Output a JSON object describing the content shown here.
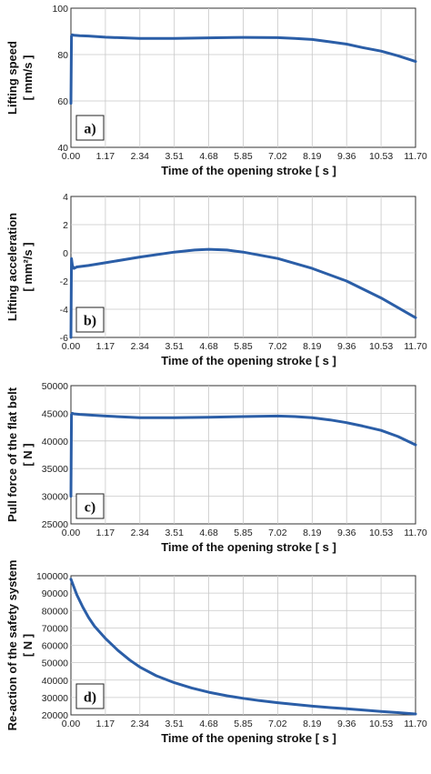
{
  "chart_data": [
    {
      "type": "line",
      "panel_label": "a)",
      "ylabel_lines": [
        "Lifting speed",
        "[ mm/s ]"
      ],
      "xlabel": "Time of the opening stroke [ s ]",
      "xlim": [
        0,
        11.7
      ],
      "ylim": [
        40,
        100
      ],
      "xticks": [
        "0.00",
        "1.17",
        "2.34",
        "3.51",
        "4.68",
        "5.85",
        "7.02",
        "8.19",
        "9.36",
        "10.53",
        "11.70"
      ],
      "yticks": [
        "40",
        "60",
        "80",
        "100"
      ],
      "grid": true,
      "series": [
        {
          "color": "#2b5ea7",
          "x": [
            0,
            0.02,
            0.05,
            0.1,
            0.3,
            0.6,
            1.17,
            2.34,
            3.51,
            4.68,
            5.85,
            7.02,
            7.6,
            8.19,
            8.8,
            9.36,
            9.9,
            10.53,
            11.1,
            11.7
          ],
          "y": [
            59,
            88,
            88.5,
            88.3,
            88.1,
            88,
            87.5,
            87,
            87,
            87.2,
            87.4,
            87.3,
            87,
            86.5,
            85.5,
            84.5,
            83,
            81.5,
            79.5,
            77
          ]
        }
      ]
    },
    {
      "type": "line",
      "panel_label": "b)",
      "ylabel_lines": [
        "Lifting acceleration",
        "[ mm²/s ]"
      ],
      "xlabel": "Time of the opening stroke [ s ]",
      "xlim": [
        0,
        11.7
      ],
      "ylim": [
        -6,
        4
      ],
      "xticks": [
        "0.00",
        "1.17",
        "2.34",
        "3.51",
        "4.68",
        "5.85",
        "7.02",
        "8.19",
        "9.36",
        "10.53",
        "11.70"
      ],
      "yticks": [
        "-6",
        "-4",
        "-2",
        "0",
        "2",
        "4"
      ],
      "grid": true,
      "series": [
        {
          "color": "#2b5ea7",
          "x": [
            0,
            0.02,
            0.05,
            0.1,
            0.2,
            0.6,
            1.17,
            2.34,
            3.51,
            4.2,
            4.68,
            5.3,
            5.85,
            7.02,
            8.19,
            9.36,
            10.53,
            11.7
          ],
          "y": [
            -6,
            -0.4,
            -0.9,
            -1.1,
            -1,
            -0.9,
            -0.7,
            -0.3,
            0.05,
            0.2,
            0.25,
            0.2,
            0.05,
            -0.4,
            -1.1,
            -2,
            -3.2,
            -4.6
          ]
        }
      ]
    },
    {
      "type": "line",
      "panel_label": "c)",
      "ylabel_lines": [
        "Pull force of the flat belt",
        "[ N ]"
      ],
      "xlabel": "Time of the opening stroke [ s ]",
      "xlim": [
        0,
        11.7
      ],
      "ylim": [
        25000,
        50000
      ],
      "xticks": [
        "0.00",
        "1.17",
        "2.34",
        "3.51",
        "4.68",
        "5.85",
        "7.02",
        "8.19",
        "9.36",
        "10.53",
        "11.70"
      ],
      "yticks": [
        "25000",
        "30000",
        "35000",
        "40000",
        "45000",
        "50000"
      ],
      "grid": true,
      "series": [
        {
          "color": "#2b5ea7",
          "x": [
            0,
            0.02,
            0.05,
            0.1,
            0.3,
            0.6,
            1.17,
            2.34,
            3.51,
            4.68,
            5.85,
            7.02,
            7.6,
            8.19,
            8.8,
            9.36,
            9.9,
            10.53,
            11.1,
            11.7
          ],
          "y": [
            30000,
            44800,
            45000,
            44900,
            44800,
            44700,
            44500,
            44200,
            44200,
            44300,
            44400,
            44500,
            44400,
            44200,
            43800,
            43300,
            42700,
            41900,
            40800,
            39300
          ]
        }
      ]
    },
    {
      "type": "line",
      "panel_label": "d)",
      "ylabel_lines": [
        "Re-action of the safety system",
        "[ N ]"
      ],
      "xlabel": "Time of the opening stroke [ s ]",
      "xlim": [
        0,
        11.7
      ],
      "ylim": [
        20000,
        100000
      ],
      "xticks": [
        "0.00",
        "1.17",
        "2.34",
        "3.51",
        "4.68",
        "5.85",
        "7.02",
        "8.19",
        "9.36",
        "10.53",
        "11.70"
      ],
      "yticks": [
        "20000",
        "30000",
        "40000",
        "50000",
        "60000",
        "70000",
        "80000",
        "90000",
        "100000"
      ],
      "grid": true,
      "series": [
        {
          "color": "#2b5ea7",
          "x": [
            0,
            0.2,
            0.4,
            0.6,
            0.8,
            1.17,
            1.6,
            2.0,
            2.34,
            2.9,
            3.51,
            4.1,
            4.68,
            5.3,
            5.85,
            6.4,
            7.02,
            7.6,
            8.19,
            8.8,
            9.36,
            9.9,
            10.53,
            11.1,
            11.7
          ],
          "y": [
            98000,
            89000,
            82000,
            76000,
            71000,
            64000,
            57000,
            51500,
            47500,
            42500,
            38500,
            35500,
            33000,
            31000,
            29500,
            28200,
            27000,
            26000,
            25000,
            24200,
            23500,
            22800,
            22000,
            21300,
            20500
          ]
        }
      ]
    }
  ]
}
